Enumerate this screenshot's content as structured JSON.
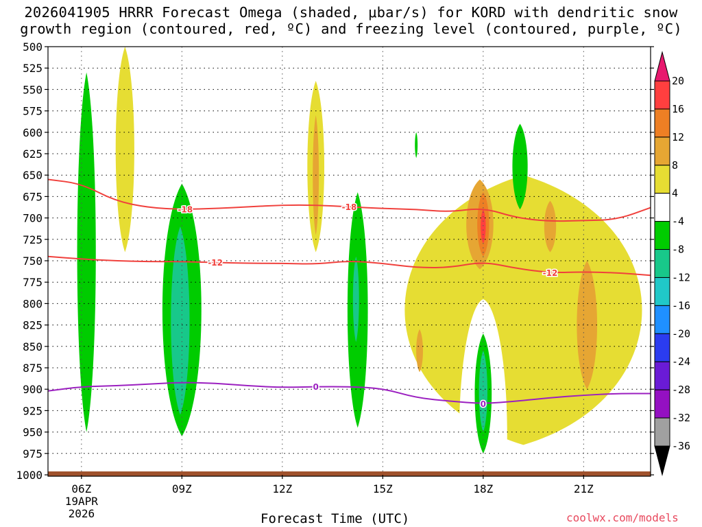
{
  "chart_data": {
    "type": "heatmap",
    "title_line1": "2026041905 HRRR Forecast Omega (shaded, μbar/s) for KORD with dendritic snow",
    "title_line2": "growth region (contoured, red, ºC) and freezing level (contoured, purple, ºC)",
    "xlabel": "Forecast Time (UTC)",
    "ylabel": "",
    "credit": "coolwx.com/models",
    "x_range_hours": [
      5,
      23
    ],
    "y_range_hPa": [
      1000,
      500
    ],
    "y_ticks": [
      500,
      525,
      550,
      575,
      600,
      625,
      650,
      675,
      700,
      725,
      750,
      775,
      800,
      825,
      850,
      875,
      900,
      925,
      950,
      975,
      1000
    ],
    "x_ticks": [
      {
        "hour": 6,
        "label": "06Z",
        "sub": [
          "19APR",
          "2026"
        ]
      },
      {
        "hour": 9,
        "label": "09Z",
        "sub": []
      },
      {
        "hour": 12,
        "label": "12Z",
        "sub": []
      },
      {
        "hour": 15,
        "label": "15Z",
        "sub": []
      },
      {
        "hour": 18,
        "label": "18Z",
        "sub": []
      },
      {
        "hour": 21,
        "label": "21Z",
        "sub": []
      }
    ],
    "colorbar": {
      "labels": [
        "20",
        "16",
        "12",
        "8",
        "4",
        "-4",
        "-8",
        "-12",
        "-16",
        "-20",
        "-24",
        "-28",
        "-32",
        "-36"
      ],
      "bins": [
        {
          "range": [
            16,
            20
          ],
          "color": "#ff3f3f"
        },
        {
          "range": [
            12,
            16
          ],
          "color": "#ee7f24"
        },
        {
          "range": [
            8,
            12
          ],
          "color": "#e6a633"
        },
        {
          "range": [
            4,
            8
          ],
          "color": "#e6dd33"
        },
        {
          "range": [
            -4,
            4
          ],
          "color": "#ffffff"
        },
        {
          "range": [
            -8,
            -4
          ],
          "color": "#00cc00"
        },
        {
          "range": [
            -12,
            -8
          ],
          "color": "#18c88a"
        },
        {
          "range": [
            -16,
            -12
          ],
          "color": "#20c8c8"
        },
        {
          "range": [
            -20,
            -16
          ],
          "color": "#1f90ff"
        },
        {
          "range": [
            -24,
            -20
          ],
          "color": "#2b3cf0"
        },
        {
          "range": [
            -28,
            -24
          ],
          "color": "#6a1bd6"
        },
        {
          "range": [
            -32,
            -28
          ],
          "color": "#9410c2"
        },
        {
          "range": [
            -36,
            -32
          ],
          "color": "#a0a0a0"
        }
      ],
      "top_arrow_color": "#e8186e",
      "bottom_arrow_color": "#000000"
    },
    "shaded_regions": [
      {
        "level": "-8 to -4",
        "hour": 6.15,
        "bottom": 950,
        "top": 530,
        "width_h": 0.55
      },
      {
        "level": "4 to 8",
        "hour": 7.3,
        "bottom": 740,
        "top": 500,
        "width_h": 0.55
      },
      {
        "level": "-8 to -4",
        "hour": 9.0,
        "bottom": 955,
        "top": 660,
        "width_h": 1.15
      },
      {
        "level": "-12 to -8",
        "hour": 8.95,
        "bottom": 930,
        "top": 710,
        "width_h": 0.55
      },
      {
        "level": "4 to 8",
        "hour": 13.0,
        "bottom": 740,
        "top": 540,
        "width_h": 0.5
      },
      {
        "level": "8 to 12",
        "hour": 13.0,
        "bottom": 720,
        "top": 580,
        "width_h": 0.18
      },
      {
        "level": "-8 to -4",
        "hour": 14.25,
        "bottom": 945,
        "top": 670,
        "width_h": 0.6
      },
      {
        "level": "-12 to -8",
        "hour": 14.2,
        "bottom": 845,
        "top": 745,
        "width_h": 0.18
      },
      {
        "level": "4 to 8",
        "hour": 19.2,
        "bottom": 965,
        "top": 650,
        "width_h": 7.0
      },
      {
        "level": "8 to 12",
        "hour": 17.9,
        "bottom": 760,
        "top": 655,
        "width_h": 0.8
      },
      {
        "level": "12 to 16",
        "hour": 18.0,
        "bottom": 745,
        "top": 670,
        "width_h": 0.35
      },
      {
        "level": "16 to 20",
        "hour": 18.0,
        "bottom": 730,
        "top": 690,
        "width_h": 0.15
      },
      {
        "level": "8 to 12",
        "hour": 20.0,
        "bottom": 740,
        "top": 680,
        "width_h": 0.35
      },
      {
        "level": "8 to 12",
        "hour": 21.1,
        "bottom": 900,
        "top": 750,
        "width_h": 0.6
      },
      {
        "level": "8 to 12",
        "hour": 16.1,
        "bottom": 880,
        "top": 830,
        "width_h": 0.2
      },
      {
        "level": "-8 to -4",
        "hour": 18.0,
        "bottom": 975,
        "top": 835,
        "width_h": 0.5
      },
      {
        "level": "-12 to -8",
        "hour": 18.0,
        "bottom": 950,
        "top": 855,
        "width_h": 0.25
      },
      {
        "level": "-8 to -4",
        "hour": 19.1,
        "bottom": 690,
        "top": 590,
        "width_h": 0.45
      },
      {
        "level": "-8 to -4",
        "hour": 16.0,
        "bottom": 630,
        "top": 600,
        "width_h": 0.08
      }
    ],
    "contours": [
      {
        "name": "-18C isotherm",
        "label": "-18",
        "color": "#f0403c",
        "x": [
          5,
          6,
          7,
          8,
          9,
          10,
          11,
          12,
          13,
          14,
          15,
          16,
          17,
          18,
          19,
          20,
          21,
          22,
          23
        ],
        "y": [
          655,
          660,
          680,
          688,
          690,
          689,
          687,
          685,
          685,
          687,
          689,
          690,
          693,
          688,
          700,
          704,
          703,
          702,
          688
        ],
        "label_positions_h": [
          9.1,
          14.0
        ]
      },
      {
        "name": "-12C isotherm",
        "label": "-12",
        "color": "#f0403c",
        "x": [
          5,
          6,
          7,
          8,
          9,
          10,
          11,
          12,
          13,
          14,
          15,
          16,
          17,
          18,
          19,
          20,
          21,
          22,
          23
        ],
        "y": [
          745,
          748,
          750,
          751,
          751,
          752,
          753,
          753,
          754,
          750,
          753,
          758,
          758,
          751,
          759,
          764,
          763,
          764,
          767
        ],
        "label_positions_h": [
          10.0,
          20.0
        ]
      },
      {
        "name": "0C freezing level",
        "label": "0",
        "color": "#9b1fc0",
        "x": [
          5,
          6,
          7,
          8,
          9,
          10,
          11,
          12,
          13,
          14,
          15,
          16,
          17,
          18,
          19,
          20,
          21,
          22,
          23
        ],
        "y": [
          902,
          897,
          896,
          894,
          892,
          893,
          896,
          898,
          897,
          897,
          899,
          910,
          914,
          917,
          914,
          910,
          907,
          905,
          905
        ],
        "label_positions_h": [
          13.0,
          18.0
        ]
      }
    ]
  }
}
